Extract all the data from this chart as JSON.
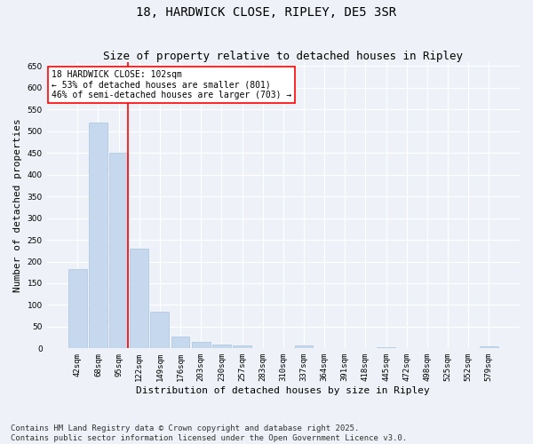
{
  "title": "18, HARDWICK CLOSE, RIPLEY, DE5 3SR",
  "subtitle": "Size of property relative to detached houses in Ripley",
  "xlabel": "Distribution of detached houses by size in Ripley",
  "ylabel": "Number of detached properties",
  "categories": [
    "42sqm",
    "68sqm",
    "95sqm",
    "122sqm",
    "149sqm",
    "176sqm",
    "203sqm",
    "230sqm",
    "257sqm",
    "283sqm",
    "310sqm",
    "337sqm",
    "364sqm",
    "391sqm",
    "418sqm",
    "445sqm",
    "472sqm",
    "498sqm",
    "525sqm",
    "552sqm",
    "579sqm"
  ],
  "values": [
    183,
    520,
    450,
    230,
    85,
    27,
    15,
    9,
    6,
    0,
    0,
    7,
    0,
    0,
    0,
    3,
    0,
    0,
    0,
    0,
    4
  ],
  "bar_color": "#c5d8ed",
  "bar_edge_color": "#aac4de",
  "redline_index": 2,
  "annotation_text": "18 HARDWICK CLOSE: 102sqm\n← 53% of detached houses are smaller (801)\n46% of semi-detached houses are larger (703) →",
  "annotation_box_color": "white",
  "annotation_box_edge": "red",
  "ylim": [
    0,
    660
  ],
  "yticks": [
    0,
    50,
    100,
    150,
    200,
    250,
    300,
    350,
    400,
    450,
    500,
    550,
    600,
    650
  ],
  "footer_line1": "Contains HM Land Registry data © Crown copyright and database right 2025.",
  "footer_line2": "Contains public sector information licensed under the Open Government Licence v3.0.",
  "background_color": "#eef2f8",
  "grid_color": "#ffffff",
  "title_fontsize": 10,
  "subtitle_fontsize": 9,
  "tick_fontsize": 6.5,
  "ylabel_fontsize": 8,
  "xlabel_fontsize": 8,
  "footer_fontsize": 6.5,
  "annotation_fontsize": 7
}
